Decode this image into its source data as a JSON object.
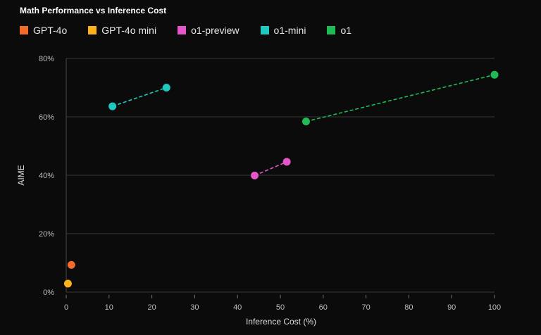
{
  "chart_data": {
    "type": "scatter",
    "title": "Math Performance vs Inference Cost",
    "xlabel": "Inference Cost (%)",
    "ylabel": "AIME",
    "xlim": [
      0,
      100
    ],
    "ylim": [
      0,
      80
    ],
    "xticks": [
      "0",
      "10",
      "20",
      "30",
      "40",
      "50",
      "60",
      "70",
      "80",
      "90",
      "100"
    ],
    "yticks": [
      "0%",
      "20%",
      "40%",
      "60%",
      "80%"
    ],
    "grid": "horizontal",
    "legend_position": "top-left",
    "series": [
      {
        "name": "GPT-4o",
        "color": "#f26b2a",
        "points": [
          [
            1.2,
            9.3
          ]
        ],
        "connected": false
      },
      {
        "name": "GPT-4o mini",
        "color": "#fbb01c",
        "points": [
          [
            0.4,
            2.9
          ]
        ],
        "connected": false
      },
      {
        "name": "o1-preview",
        "color": "#e455c8",
        "points": [
          [
            44.0,
            39.9
          ],
          [
            51.5,
            44.6
          ]
        ],
        "connected": true
      },
      {
        "name": "o1-mini",
        "color": "#1ec9bf",
        "points": [
          [
            10.8,
            63.6
          ],
          [
            23.4,
            70.0
          ]
        ],
        "connected": true
      },
      {
        "name": "o1",
        "color": "#1fbb55",
        "points": [
          [
            56.0,
            58.4
          ],
          [
            100.0,
            74.4
          ]
        ],
        "connected": true
      }
    ]
  }
}
